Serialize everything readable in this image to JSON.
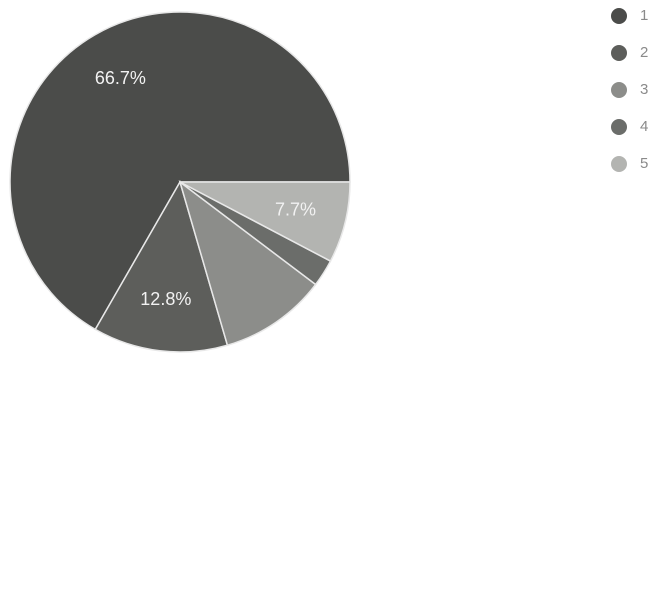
{
  "chart_data": {
    "type": "pie",
    "categories": [
      "1",
      "2",
      "3",
      "4",
      "5"
    ],
    "values": [
      66.7,
      12.8,
      10.2,
      2.6,
      7.7
    ],
    "value_labels": [
      "66.7%",
      "12.8%",
      null,
      null,
      "7.7%"
    ],
    "colors": [
      "#4b4c4a",
      "#5d5e5b",
      "#8c8d8a",
      "#6b6d6a",
      "#b3b4b1"
    ],
    "legend": "upper right"
  }
}
